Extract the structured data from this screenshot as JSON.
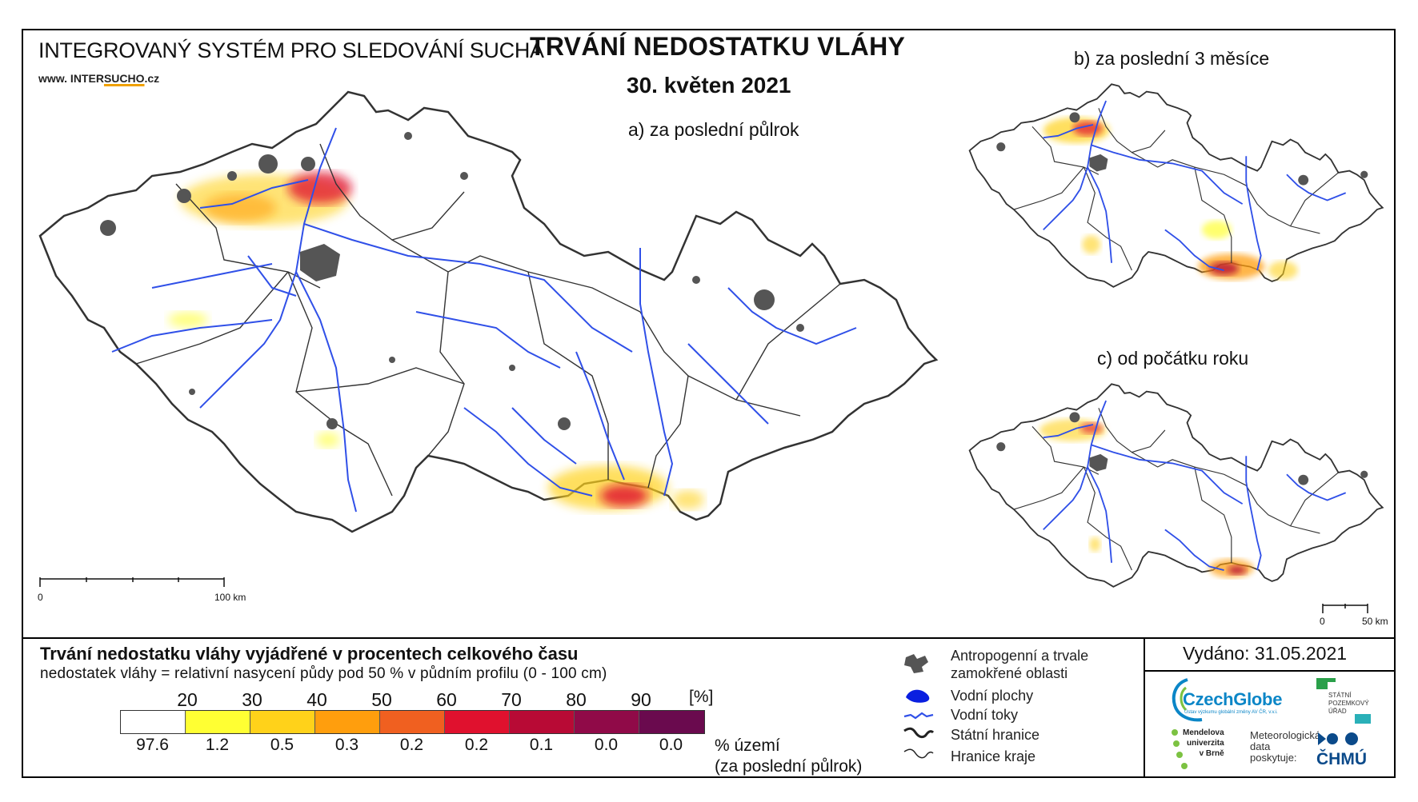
{
  "header": {
    "system_title": "INTEGROVANÝ SYSTÉM PRO SLEDOVÁNÍ SUCHA",
    "website_prefix": "www. INTER",
    "website_highlight": "SUCHO",
    "website_suffix": ".cz",
    "main_title": "TRVÁNÍ NEDOSTATKU VLÁHY",
    "date": "30. květen 2021"
  },
  "maps": {
    "a_label": "a) za poslední půlrok",
    "b_label": "b) za poslední 3 měsíce",
    "c_label": "c) od počátku roku",
    "a_scale_start": "0",
    "a_scale_end": "100 km",
    "small_scale_start": "0",
    "small_scale_end": "50 km"
  },
  "legend": {
    "title": "Trvání nedostatku vláhy vyjádřené v procentech celkového času",
    "subtitle": "nedostatek vláhy = relativní nasycení půdy pod 50 % v půdním profilu (0 - 100 cm)",
    "ticks": [
      "20",
      "30",
      "40",
      "50",
      "60",
      "70",
      "80",
      "90"
    ],
    "unit": "[%]",
    "colors": [
      "#ffffff",
      "#ffff33",
      "#ffd21a",
      "#ff9e0d",
      "#f06020",
      "#e0112e",
      "#b80a35",
      "#900a48",
      "#6a0a4e"
    ],
    "area_percent": [
      "97.6",
      "1.2",
      "0.5",
      "0.3",
      "0.2",
      "0.2",
      "0.1",
      "0.0",
      "0.0"
    ],
    "area_label_1": "% území",
    "area_label_2": "(za poslední půlrok)"
  },
  "symbols": {
    "anthropogenic_1": "Antropogenní a trvale",
    "anthropogenic_2": "zamokřené oblasti",
    "water_bodies": "Vodní plochy",
    "water_courses": "Vodní toky",
    "state_border": "Státní hranice",
    "region_border": "Hranice kraje"
  },
  "footer": {
    "issued": "Vydáno: 31.05.2021",
    "czechglobe": "CzechGlobe",
    "czechglobe_sub": "Ústav výzkumu globální změny AV ČR, v.v.i.",
    "spu_1": "STÁTNÍ",
    "spu_2": "POZEMKOVÝ",
    "spu_3": "ÚŘAD",
    "mendel_1": "Mendelova",
    "mendel_2": "univerzita",
    "mendel_3": "v Brně",
    "met_1": "Meteorologická",
    "met_2": "data",
    "met_3": "poskytuje:",
    "chmu": "ČHMÚ"
  },
  "colors": {
    "river": "#3050e8",
    "urban": "#555555",
    "border": "#333333"
  }
}
